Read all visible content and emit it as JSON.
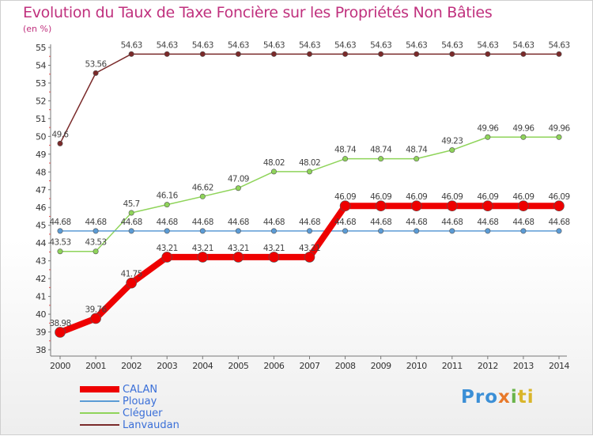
{
  "header": {
    "title": "Evolution du Taux de Taxe Foncière sur les Propriétés Non Bâties",
    "unit": "(en %)"
  },
  "logo": {
    "p1": "Pro",
    "p2": "x",
    "p3": "i",
    "p4": "ti"
  },
  "colors": {
    "title": "#c0317e",
    "axis": "#777777",
    "legend_text": "#3a6fd8"
  },
  "chart_data": {
    "type": "line",
    "title": "Evolution du Taux de Taxe Foncière sur les Propriétés Non Bâties",
    "ylabel": "(en %)",
    "xlabel": "",
    "ylim": [
      38,
      55
    ],
    "y_ticks": [
      38,
      39,
      40,
      41,
      42,
      43,
      44,
      45,
      46,
      47,
      48,
      49,
      50,
      51,
      52,
      53,
      54,
      55
    ],
    "x": [
      "2000",
      "2001",
      "2002",
      "2003",
      "2004",
      "2005",
      "2006",
      "2007",
      "2008",
      "2009",
      "2010",
      "2011",
      "2012",
      "2013",
      "2014"
    ],
    "grid": false,
    "legend_position": "bottom-left",
    "series": [
      {
        "name": "CALAN",
        "color": "#ee0000",
        "values": [
          38.98,
          39.76,
          41.75,
          43.21,
          43.21,
          43.21,
          43.21,
          43.21,
          46.09,
          46.09,
          46.09,
          46.09,
          46.09,
          46.09,
          46.09
        ],
        "labels": [
          "38.98",
          "39.76",
          "41.75",
          "43.21",
          "43.21",
          "43.21",
          "43.21",
          "43.21",
          "46.09",
          "46.09",
          "46.09",
          "46.09",
          "46.09",
          "46.09",
          "46.09"
        ]
      },
      {
        "name": "Plouay",
        "color": "#5b9bd5",
        "values": [
          44.68,
          44.68,
          44.68,
          44.68,
          44.68,
          44.68,
          44.68,
          44.68,
          44.68,
          44.68,
          44.68,
          44.68,
          44.68,
          44.68,
          44.68
        ],
        "labels": [
          "44.68",
          "44.68",
          "44.68",
          "44.68",
          "44.68",
          "44.68",
          "44.68",
          "44.68",
          "44.68",
          "44.68",
          "44.68",
          "44.68",
          "44.68",
          "44.68",
          "44.68"
        ]
      },
      {
        "name": "Cléguer",
        "color": "#8fd45a",
        "values": [
          43.53,
          43.53,
          45.7,
          46.16,
          46.62,
          47.09,
          48.02,
          48.02,
          48.74,
          48.74,
          48.74,
          49.23,
          49.96,
          49.96,
          49.96
        ],
        "labels": [
          "43.53",
          "43.53",
          "45.7",
          "46.16",
          "46.62",
          "47.09",
          "48.02",
          "48.02",
          "48.74",
          "48.74",
          "48.74",
          "49.23",
          "49.96",
          "49.96",
          "49.96"
        ]
      },
      {
        "name": "Lanvaudan",
        "color": "#7a2a2a",
        "values": [
          49.6,
          53.56,
          54.63,
          54.63,
          54.63,
          54.63,
          54.63,
          54.63,
          54.63,
          54.63,
          54.63,
          54.63,
          54.63,
          54.63,
          54.63
        ],
        "labels": [
          "49.6",
          "53.56",
          "54.63",
          "54.63",
          "54.63",
          "54.63",
          "54.63",
          "54.63",
          "54.63",
          "54.63",
          "54.63",
          "54.63",
          "54.63",
          "54.63",
          "54.63"
        ]
      }
    ]
  }
}
